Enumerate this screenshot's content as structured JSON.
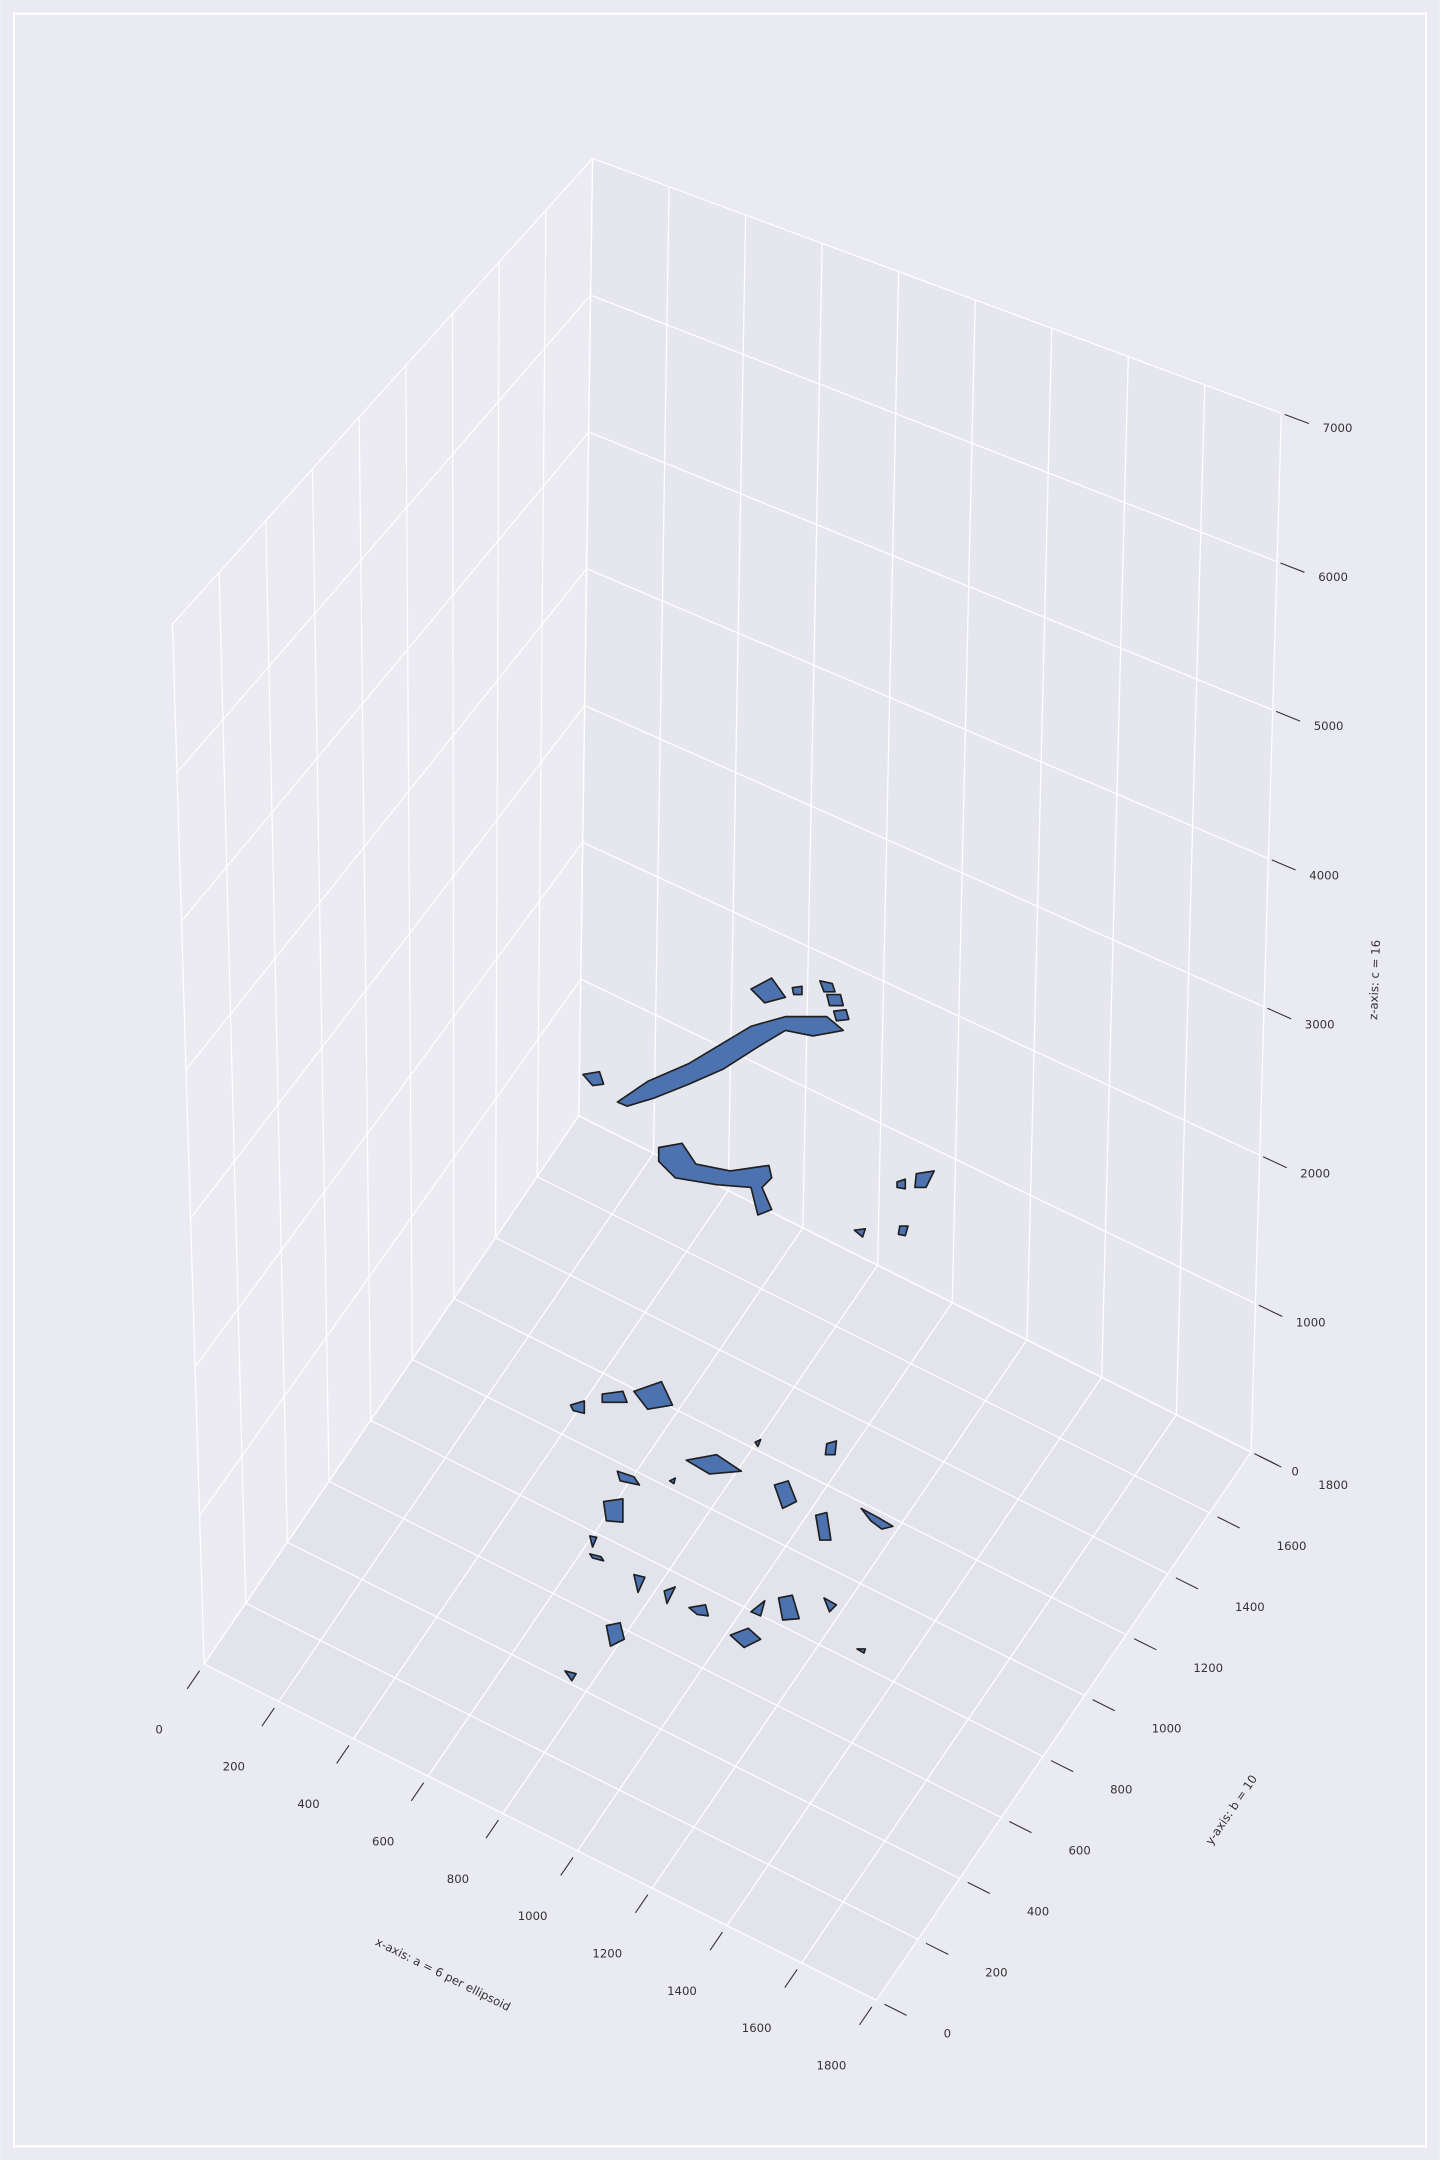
{
  "chart_data": {
    "type": "surface3d",
    "xlabel": "x-axis: a = 6 per ellipsoid",
    "ylabel": "y-axis: b = 10",
    "zlabel": "z-axis: c = 16",
    "xlim": [
      0,
      1800
    ],
    "ylim": [
      0,
      1800
    ],
    "zlim": [
      0,
      7000
    ],
    "xticks": [
      0,
      200,
      400,
      600,
      800,
      1000,
      1200,
      1400,
      1600,
      1800
    ],
    "yticks": [
      0,
      200,
      400,
      600,
      800,
      1000,
      1200,
      1400,
      1600,
      1800
    ],
    "zticks": [
      0,
      1000,
      2000,
      3000,
      4000,
      5000,
      6000,
      7000
    ],
    "color": "#4c72b0",
    "grid": true
  }
}
